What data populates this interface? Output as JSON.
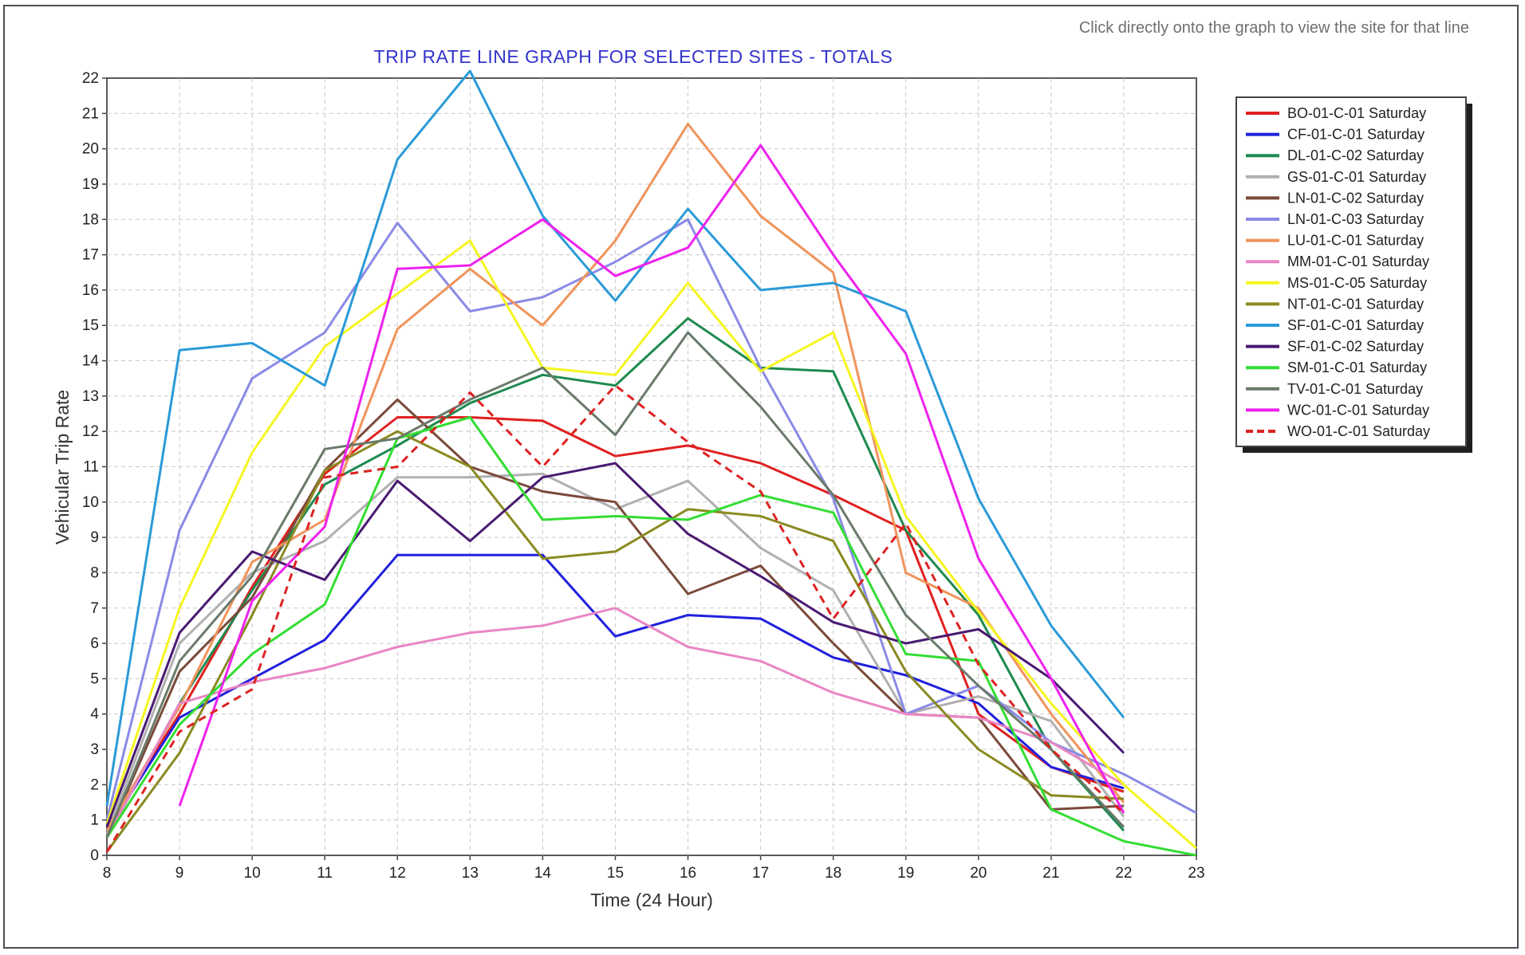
{
  "hint": "Click directly onto the graph to view the site for that line",
  "chart_data": {
    "type": "line",
    "title": "TRIP RATE LINE GRAPH FOR SELECTED SITES - TOTALS",
    "xlabel": "Time (24 Hour)",
    "ylabel": "Vehicular Trip Rate",
    "xlim": [
      8,
      23
    ],
    "ylim": [
      0,
      22
    ],
    "x_ticks": [
      8,
      9,
      10,
      11,
      12,
      13,
      14,
      15,
      16,
      17,
      18,
      19,
      20,
      21,
      22,
      23
    ],
    "y_ticks": [
      0,
      1,
      2,
      3,
      4,
      5,
      6,
      7,
      8,
      9,
      10,
      11,
      12,
      13,
      14,
      15,
      16,
      17,
      18,
      19,
      20,
      21,
      22
    ],
    "grid": true,
    "legend_position": "right",
    "series": [
      {
        "name": "BO-01-C-01 Saturday",
        "color": "#e02020",
        "dashed": false,
        "x": [
          8,
          9,
          10,
          11,
          12,
          13,
          14,
          15,
          16,
          17,
          18,
          19,
          20,
          21,
          22
        ],
        "y": [
          0.8,
          4.0,
          7.6,
          10.8,
          12.4,
          12.4,
          12.3,
          11.3,
          11.6,
          11.1,
          10.2,
          9.2,
          4.0,
          2.5,
          1.8
        ]
      },
      {
        "name": "CF-01-C-01 Saturday",
        "color": "#2020dd",
        "dashed": false,
        "x": [
          8,
          9,
          10,
          11,
          12,
          13,
          14,
          15,
          16,
          17,
          18,
          19,
          20,
          21,
          22
        ],
        "y": [
          0.7,
          3.9,
          5.0,
          6.1,
          8.5,
          8.5,
          8.5,
          6.2,
          6.8,
          6.7,
          5.6,
          5.1,
          4.3,
          2.5,
          1.9
        ]
      },
      {
        "name": "DL-01-C-02 Saturday",
        "color": "#1e8a50",
        "dashed": false,
        "x": [
          8,
          9,
          10,
          11,
          12,
          13,
          14,
          15,
          16,
          17,
          18,
          19,
          20,
          21,
          22
        ],
        "y": [
          0.5,
          4.3,
          7.5,
          10.5,
          11.6,
          12.8,
          13.6,
          13.3,
          15.2,
          13.8,
          13.7,
          9.2,
          6.8,
          3.0,
          0.7
        ]
      },
      {
        "name": "GS-01-C-01 Saturday",
        "color": "#b0b0b0",
        "dashed": false,
        "x": [
          8,
          9,
          10,
          11,
          12,
          13,
          14,
          15,
          16,
          17,
          18,
          19,
          20,
          21,
          22
        ],
        "y": [
          0.6,
          6.0,
          8.0,
          8.9,
          10.7,
          10.7,
          10.8,
          9.8,
          10.6,
          8.7,
          7.5,
          4.0,
          4.5,
          3.8,
          1.1
        ]
      },
      {
        "name": "LN-01-C-02 Saturday",
        "color": "#7a4a3a",
        "dashed": false,
        "x": [
          8,
          9,
          10,
          11,
          12,
          13,
          14,
          15,
          16,
          17,
          18,
          19,
          20,
          21,
          22
        ],
        "y": [
          0.5,
          5.2,
          7.3,
          10.9,
          12.9,
          11.0,
          10.3,
          10.0,
          7.4,
          8.2,
          6.0,
          4.0,
          3.9,
          1.3,
          1.4
        ]
      },
      {
        "name": "LN-01-C-03 Saturday",
        "color": "#8a8ae6",
        "dashed": false,
        "x": [
          8,
          9,
          10,
          11,
          12,
          13,
          14,
          15,
          16,
          17,
          18,
          19,
          20,
          21,
          22,
          23
        ],
        "y": [
          1.0,
          9.2,
          13.5,
          14.8,
          17.9,
          15.4,
          15.8,
          16.8,
          18.0,
          13.8,
          10.1,
          4.0,
          4.8,
          3.2,
          2.3,
          1.2
        ]
      },
      {
        "name": "LU-01-C-01 Saturday",
        "color": "#f0945c",
        "dashed": false,
        "x": [
          8,
          9,
          10,
          11,
          12,
          13,
          14,
          15,
          16,
          17,
          18,
          19,
          20,
          21,
          22
        ],
        "y": [
          0.7,
          4.2,
          8.3,
          9.5,
          14.9,
          16.6,
          15.0,
          17.4,
          20.7,
          18.1,
          16.5,
          8.0,
          7.0,
          4.0,
          1.5
        ]
      },
      {
        "name": "MM-01-C-01 Saturday",
        "color": "#e986c4",
        "dashed": false,
        "x": [
          8,
          9,
          10,
          11,
          12,
          13,
          14,
          15,
          16,
          17,
          18,
          19,
          20,
          21,
          22
        ],
        "y": [
          0.5,
          4.3,
          4.9,
          5.3,
          5.9,
          6.3,
          6.5,
          7.0,
          5.9,
          5.5,
          4.6,
          4.0,
          3.9,
          3.2,
          2.0
        ]
      },
      {
        "name": "MS-01-C-05 Saturday",
        "color": "#f5f520",
        "dashed": false,
        "x": [
          8,
          9,
          10,
          11,
          12,
          13,
          14,
          15,
          16,
          17,
          18,
          19,
          20,
          21,
          22,
          23
        ],
        "y": [
          0.9,
          7.0,
          11.4,
          14.4,
          15.9,
          17.4,
          13.8,
          13.6,
          16.2,
          13.7,
          14.8,
          9.6,
          6.9,
          4.3,
          2.0,
          0.2
        ]
      },
      {
        "name": "NT-01-C-01 Saturday",
        "color": "#8a8a22",
        "dashed": false,
        "x": [
          8,
          9,
          10,
          11,
          12,
          13,
          14,
          15,
          16,
          17,
          18,
          19,
          20,
          21,
          22
        ],
        "y": [
          0.1,
          2.9,
          6.8,
          10.9,
          12.0,
          11.0,
          8.4,
          8.6,
          9.8,
          9.6,
          8.9,
          5.2,
          3.0,
          1.7,
          1.6
        ]
      },
      {
        "name": "SF-01-C-01 Saturday",
        "color": "#2a9ad8",
        "dashed": false,
        "x": [
          8,
          9,
          10,
          11,
          12,
          13,
          14,
          15,
          16,
          17,
          18,
          19,
          20,
          21,
          22
        ],
        "y": [
          1.4,
          14.3,
          14.5,
          13.3,
          19.7,
          22.2,
          18.1,
          15.7,
          18.3,
          16.0,
          16.2,
          15.4,
          10.1,
          6.5,
          3.9
        ]
      },
      {
        "name": "SF-01-C-02 Saturday",
        "color": "#4a1a72",
        "dashed": false,
        "x": [
          8,
          9,
          10,
          11,
          12,
          13,
          14,
          15,
          16,
          17,
          18,
          19,
          20,
          21,
          22
        ],
        "y": [
          0.8,
          6.3,
          8.6,
          7.8,
          10.6,
          8.9,
          10.7,
          11.1,
          9.1,
          7.9,
          6.6,
          6.0,
          6.4,
          5.0,
          2.9
        ]
      },
      {
        "name": "SM-01-C-01 Saturday",
        "color": "#33dd33",
        "dashed": false,
        "x": [
          8,
          9,
          10,
          11,
          12,
          13,
          14,
          15,
          16,
          17,
          18,
          19,
          20,
          21,
          22,
          23
        ],
        "y": [
          0.5,
          3.7,
          5.7,
          7.1,
          11.8,
          12.4,
          9.5,
          9.6,
          9.5,
          10.2,
          9.7,
          5.7,
          5.5,
          1.3,
          0.4,
          0.0
        ]
      },
      {
        "name": "TV-01-C-01 Saturday",
        "color": "#6a7a6a",
        "dashed": false,
        "x": [
          8,
          9,
          10,
          11,
          12,
          13,
          14,
          15,
          16,
          17,
          18,
          19,
          20,
          21,
          22
        ],
        "y": [
          0.5,
          5.5,
          7.9,
          11.5,
          11.8,
          12.9,
          13.8,
          11.9,
          14.8,
          12.7,
          10.2,
          6.8,
          4.8,
          3.0,
          0.8
        ]
      },
      {
        "name": "WC-01-C-01 Saturday",
        "color": "#ee22ee",
        "dashed": false,
        "x": [
          9,
          10,
          11,
          12,
          13,
          14,
          15,
          16,
          17,
          18,
          19,
          20,
          21,
          22
        ],
        "y": [
          1.4,
          7.2,
          9.3,
          16.6,
          16.7,
          18.0,
          16.4,
          17.2,
          20.1,
          17.0,
          14.2,
          8.4,
          5.0,
          1.2
        ]
      },
      {
        "name": "WO-01-C-01 Saturday",
        "color": "#dd2222",
        "dashed": true,
        "x": [
          8,
          9,
          10,
          11,
          12,
          13,
          14,
          15,
          16,
          17,
          18,
          19,
          20,
          21,
          22
        ],
        "y": [
          0.1,
          3.5,
          4.7,
          10.7,
          11.0,
          13.1,
          11.0,
          13.3,
          11.7,
          10.3,
          6.7,
          9.4,
          5.4,
          3.0,
          1.2
        ]
      }
    ]
  }
}
